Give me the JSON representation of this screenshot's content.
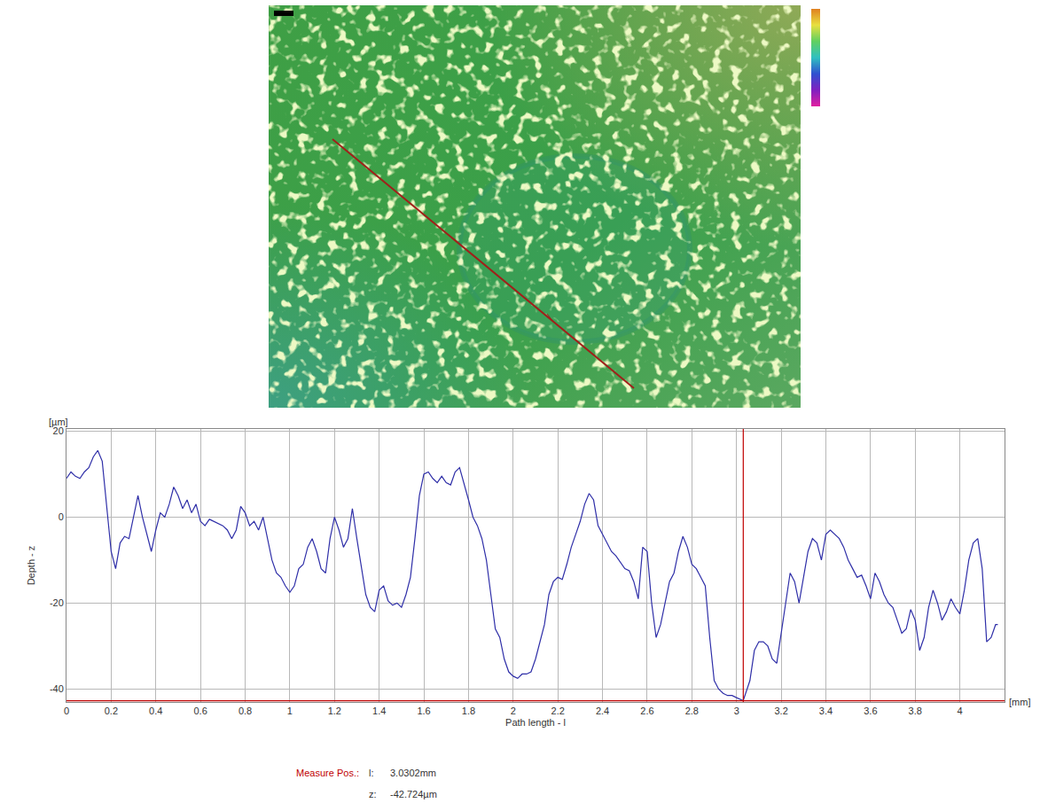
{
  "chart_data": {
    "type": "line",
    "x_label": "Path length - l",
    "x_unit": "[mm]",
    "y_label": "Depth - z",
    "y_unit": "[µm]",
    "grid": true,
    "xlim": [
      0,
      4.2
    ],
    "ylim": [
      -43,
      20.5
    ],
    "xticks": [
      0,
      0.2,
      0.4,
      0.6,
      0.8,
      1,
      1.2,
      1.4,
      1.6,
      1.8,
      2,
      2.2,
      2.4,
      2.6,
      2.8,
      3,
      3.2,
      3.4,
      3.6,
      3.8,
      4
    ],
    "yticks": [
      -40,
      -20,
      0,
      20
    ],
    "x": [
      0,
      0.02,
      0.04,
      0.06,
      0.08,
      0.1,
      0.12,
      0.14,
      0.16,
      0.18,
      0.2,
      0.22,
      0.24,
      0.26,
      0.28,
      0.3,
      0.32,
      0.34,
      0.36,
      0.38,
      0.4,
      0.42,
      0.44,
      0.46,
      0.48,
      0.5,
      0.52,
      0.54,
      0.56,
      0.58,
      0.6,
      0.62,
      0.64,
      0.66,
      0.68,
      0.7,
      0.72,
      0.74,
      0.76,
      0.78,
      0.8,
      0.82,
      0.84,
      0.86,
      0.88,
      0.9,
      0.92,
      0.94,
      0.96,
      0.98,
      1,
      1.02,
      1.04,
      1.06,
      1.08,
      1.1,
      1.12,
      1.14,
      1.16,
      1.18,
      1.2,
      1.22,
      1.24,
      1.26,
      1.28,
      1.3,
      1.32,
      1.34,
      1.36,
      1.38,
      1.4,
      1.42,
      1.44,
      1.46,
      1.48,
      1.5,
      1.52,
      1.54,
      1.56,
      1.58,
      1.6,
      1.62,
      1.64,
      1.66,
      1.68,
      1.7,
      1.72,
      1.74,
      1.76,
      1.78,
      1.8,
      1.82,
      1.84,
      1.86,
      1.88,
      1.9,
      1.92,
      1.94,
      1.96,
      1.98,
      2,
      2.02,
      2.04,
      2.06,
      2.08,
      2.1,
      2.12,
      2.14,
      2.16,
      2.18,
      2.2,
      2.22,
      2.24,
      2.26,
      2.28,
      2.3,
      2.32,
      2.34,
      2.36,
      2.38,
      2.4,
      2.42,
      2.44,
      2.46,
      2.48,
      2.5,
      2.52,
      2.54,
      2.56,
      2.58,
      2.6,
      2.62,
      2.64,
      2.66,
      2.68,
      2.7,
      2.72,
      2.74,
      2.76,
      2.78,
      2.8,
      2.82,
      2.84,
      2.86,
      2.88,
      2.9,
      2.92,
      2.94,
      2.96,
      2.98,
      3,
      3.03,
      3.06,
      3.08,
      3.1,
      3.12,
      3.14,
      3.16,
      3.18,
      3.2,
      3.22,
      3.24,
      3.26,
      3.28,
      3.3,
      3.32,
      3.34,
      3.36,
      3.38,
      3.4,
      3.42,
      3.44,
      3.46,
      3.48,
      3.5,
      3.52,
      3.54,
      3.56,
      3.58,
      3.6,
      3.62,
      3.64,
      3.66,
      3.68,
      3.7,
      3.72,
      3.74,
      3.76,
      3.78,
      3.8,
      3.82,
      3.84,
      3.86,
      3.88,
      3.9,
      3.92,
      3.94,
      3.96,
      3.98,
      4,
      4.02,
      4.04,
      4.06,
      4.08,
      4.1,
      4.12,
      4.14,
      4.16,
      4.17
    ],
    "series": [
      {
        "name": "Depth - z",
        "color": "#2f2fa8",
        "values": [
          9,
          10.5,
          9.5,
          9,
          10.5,
          11.5,
          14,
          15.5,
          13,
          2,
          -8,
          -12,
          -6,
          -4.5,
          -5,
          0,
          5,
          0,
          -4,
          -8,
          -3,
          1,
          0,
          3,
          7,
          5,
          2,
          4,
          1,
          3,
          -1,
          -2,
          -0.5,
          -1,
          -1.5,
          -2,
          -3,
          -5,
          -3,
          2.5,
          1,
          -2,
          -1,
          -3,
          0,
          -5,
          -10,
          -13,
          -14,
          -16,
          -17.5,
          -16,
          -12,
          -11,
          -7,
          -5,
          -8,
          -12,
          -13,
          -5,
          0,
          -3,
          -7,
          -5,
          2,
          -5,
          -12,
          -18,
          -21,
          -22,
          -17,
          -16,
          -19.5,
          -20.5,
          -20,
          -21,
          -18,
          -14,
          -5,
          5,
          10,
          10.5,
          9,
          8,
          9.5,
          8,
          7.5,
          10.5,
          11.5,
          8,
          4,
          0,
          -2,
          -5,
          -10,
          -18,
          -26,
          -28,
          -33,
          -36,
          -37,
          -37.5,
          -36.5,
          -36.5,
          -36,
          -33,
          -29,
          -25,
          -18,
          -15,
          -14,
          -14.5,
          -11,
          -7,
          -4,
          -1,
          3,
          5.5,
          4,
          -2,
          -4,
          -6,
          -8,
          -9,
          -10.5,
          -12,
          -12.5,
          -15,
          -19,
          -7,
          -8,
          -20,
          -28,
          -25,
          -20,
          -15,
          -13,
          -8,
          -4.5,
          -7,
          -11,
          -12,
          -14,
          -16,
          -28,
          -38,
          -40,
          -41,
          -41.5,
          -41.5,
          -42,
          -42.7,
          -38,
          -31,
          -29,
          -29,
          -30,
          -33,
          -34,
          -27,
          -21,
          -13,
          -15,
          -20,
          -14,
          -8,
          -5,
          -6,
          -10,
          -4,
          -3,
          -4,
          -5,
          -7,
          -10,
          -12,
          -14,
          -13.5,
          -16,
          -19,
          -13,
          -15,
          -18,
          -20,
          -21,
          -24,
          -27,
          -26,
          -21.5,
          -24,
          -31,
          -28,
          -21,
          -17,
          -20,
          -24,
          -22,
          -19,
          -21,
          -22.5,
          -17,
          -10,
          -6,
          -5,
          -12,
          -29,
          -28,
          -25,
          -25
        ]
      }
    ],
    "measure": {
      "label": "Measure Pos.:",
      "l_label": "l:",
      "l": 3.0302,
      "l_text": "3.0302mm",
      "z_label": "z:",
      "z": -42.724,
      "z_text": "-42.724µm",
      "color": "#c00000"
    }
  }
}
